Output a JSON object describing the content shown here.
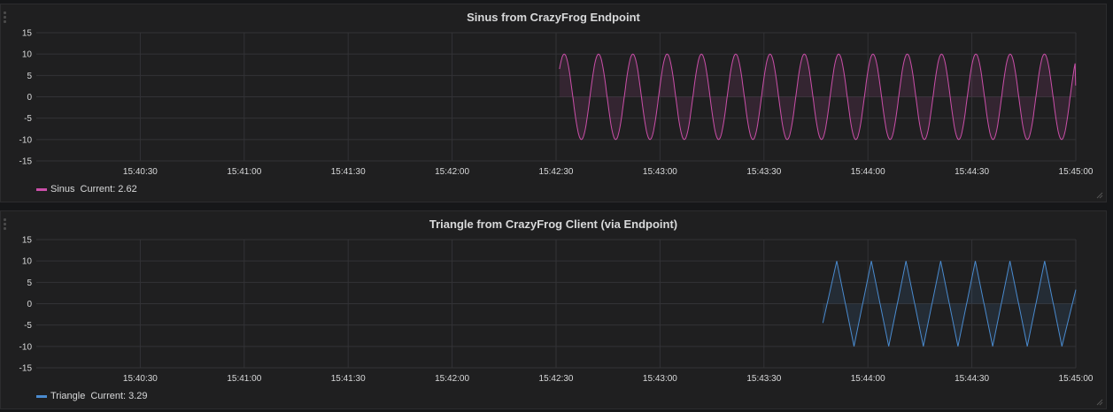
{
  "panels": [
    {
      "title": "Sinus from CrazyFrog Endpoint",
      "legend": {
        "series": "Sinus",
        "current_label": "Current:",
        "current_value": "2.62",
        "color": "#cb4fa9"
      }
    },
    {
      "title": "Triangle from CrazyFrog Client (via Endpoint)",
      "legend": {
        "series": "Triangle",
        "current_label": "Current:",
        "current_value": "3.29",
        "color": "#4a8bcf"
      }
    }
  ],
  "chart_data": [
    {
      "type": "line",
      "title": "Sinus from CrazyFrog Endpoint",
      "xlabel": "",
      "ylabel": "",
      "x_ticks": [
        "15:40:30",
        "15:41:00",
        "15:41:30",
        "15:42:00",
        "15:42:30",
        "15:43:00",
        "15:43:30",
        "15:44:00",
        "15:44:30",
        "15:45:00"
      ],
      "y_ticks": [
        15,
        10,
        5,
        0,
        -5,
        -10,
        -15
      ],
      "ylim": [
        -15,
        15
      ],
      "xlim": [
        "15:40:00",
        "15:45:00"
      ],
      "grid": true,
      "legend_position": "bottom-left",
      "series": [
        {
          "name": "Sinus",
          "color": "#cb4fa9",
          "fill": true,
          "waveform": "sine",
          "amplitude": 10,
          "start": "15:42:31",
          "end": "15:45:00",
          "period_seconds": 9.9,
          "start_value": 6.5,
          "current": 2.62
        }
      ]
    },
    {
      "type": "line",
      "title": "Triangle from CrazyFrog Client (via Endpoint)",
      "xlabel": "",
      "ylabel": "",
      "x_ticks": [
        "15:40:30",
        "15:41:00",
        "15:41:30",
        "15:42:00",
        "15:42:30",
        "15:43:00",
        "15:43:30",
        "15:44:00",
        "15:44:30",
        "15:45:00"
      ],
      "y_ticks": [
        15,
        10,
        5,
        0,
        -5,
        -10,
        -15
      ],
      "ylim": [
        -15,
        15
      ],
      "xlim": [
        "15:40:00",
        "15:45:00"
      ],
      "grid": true,
      "legend_position": "bottom-left",
      "series": [
        {
          "name": "Triangle",
          "color": "#4a8bcf",
          "fill": true,
          "waveform": "triangle",
          "points": [
            [
              "15:43:47",
              -4.5
            ],
            [
              "15:43:51",
              10
            ],
            [
              "15:43:56",
              -10
            ],
            [
              "15:44:01",
              10
            ],
            [
              "15:44:06",
              -10
            ],
            [
              "15:44:11",
              10
            ],
            [
              "15:44:16",
              -10
            ],
            [
              "15:44:21",
              10
            ],
            [
              "15:44:26",
              -10
            ],
            [
              "15:44:31",
              10
            ],
            [
              "15:44:36",
              -10
            ],
            [
              "15:44:41",
              10
            ],
            [
              "15:44:46",
              -10
            ],
            [
              "15:44:51",
              10
            ],
            [
              "15:44:56",
              -10
            ],
            [
              "15:45:00",
              3.29
            ]
          ],
          "current": 3.29
        }
      ]
    }
  ]
}
